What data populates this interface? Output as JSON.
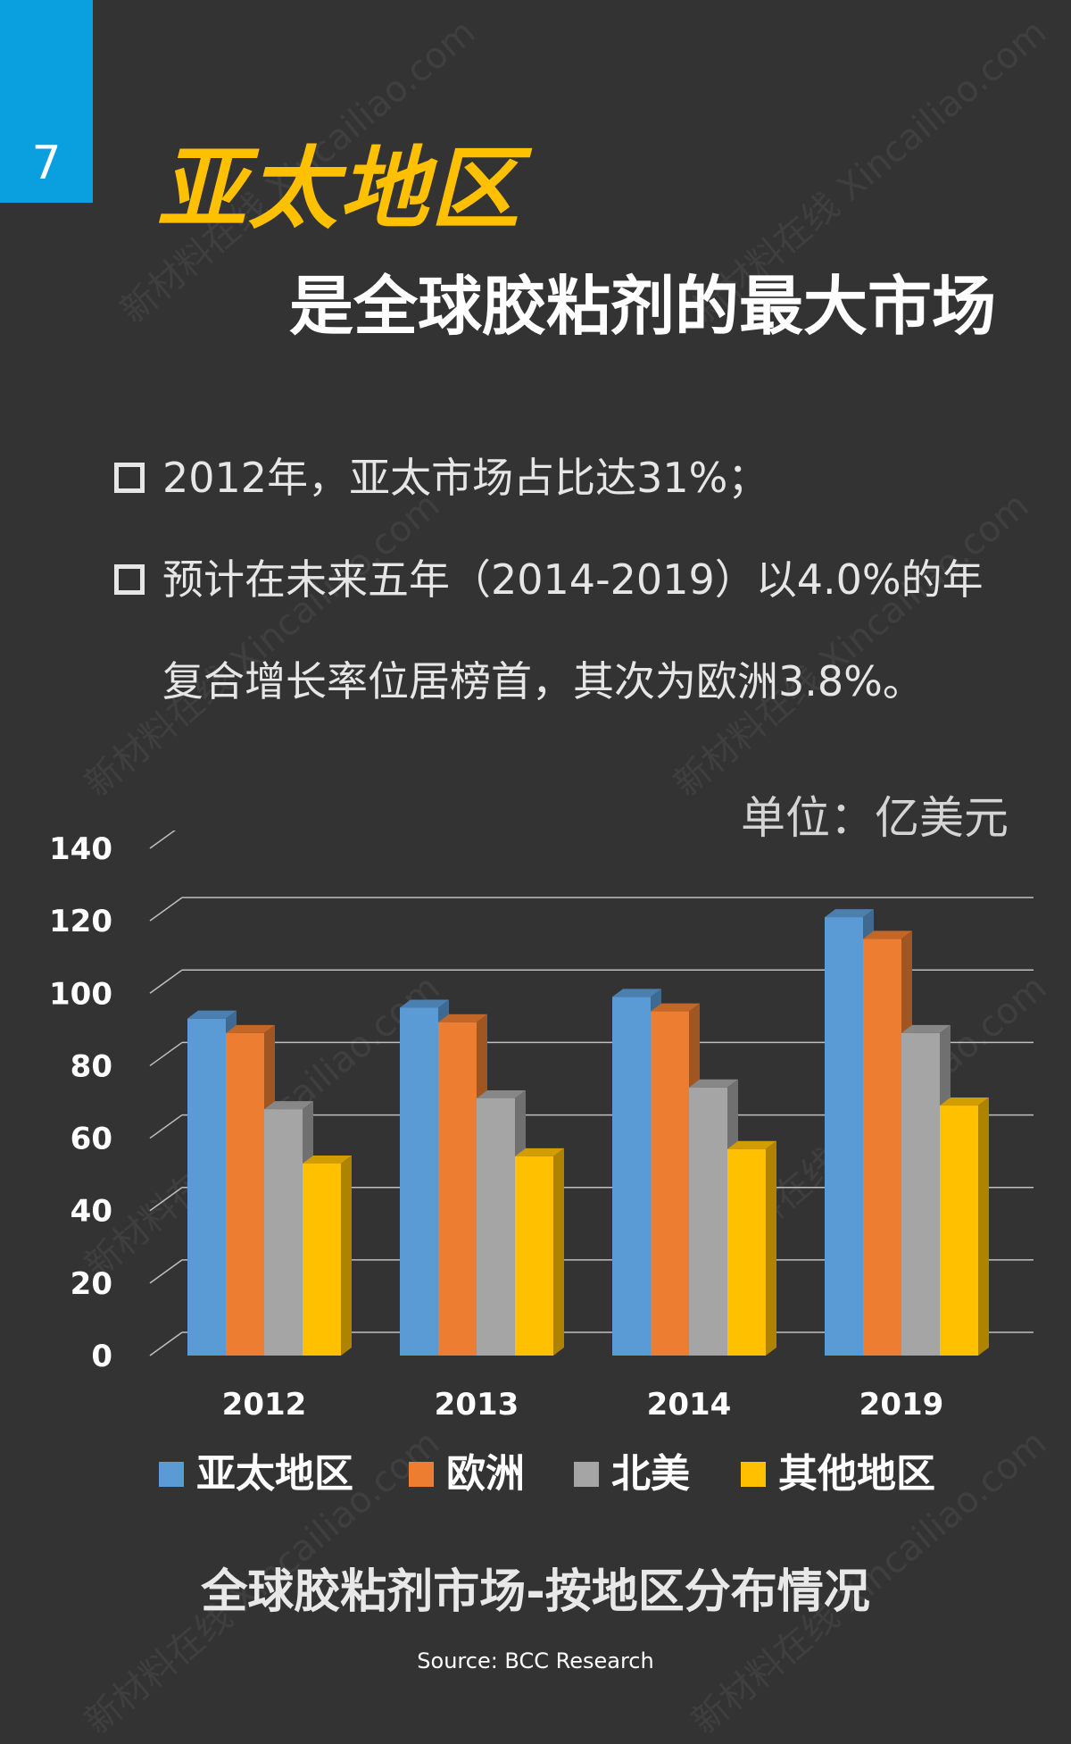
{
  "page": {
    "number": "7",
    "title": "亚太地区",
    "subtitle": "是全球胶粘剂的最大市场",
    "bullets": [
      "2012年，亚太市场占比达31%；",
      "预计在未来五年（2014-2019）以4.0%的年复合增长率位居榜首，其次为欧洲3.8%。"
    ],
    "unit_label": "单位：亿美元",
    "chart_title": "全球胶粘剂市场-按地区分布情况",
    "source": "Source: BCC Research",
    "watermark": "新材料在线 Xincailiao.com"
  },
  "chart_data": {
    "type": "bar",
    "categories": [
      "2012",
      "2013",
      "2014",
      "2019"
    ],
    "series": [
      {
        "name": "亚太地区",
        "values": [
          93,
          96,
          99,
          121
        ],
        "color": "#5b9bd5"
      },
      {
        "name": "欧洲",
        "values": [
          89,
          92,
          95,
          115
        ],
        "color": "#ed7d31"
      },
      {
        "name": "北美",
        "values": [
          68,
          71,
          74,
          89
        ],
        "color": "#a5a5a5"
      },
      {
        "name": "其他地区",
        "values": [
          53,
          55,
          57,
          69
        ],
        "color": "#ffc000"
      }
    ],
    "ylim": [
      0,
      140
    ],
    "yticks": [
      0,
      20,
      40,
      60,
      80,
      100,
      120,
      140
    ],
    "grid": true,
    "legend": "bottom"
  }
}
